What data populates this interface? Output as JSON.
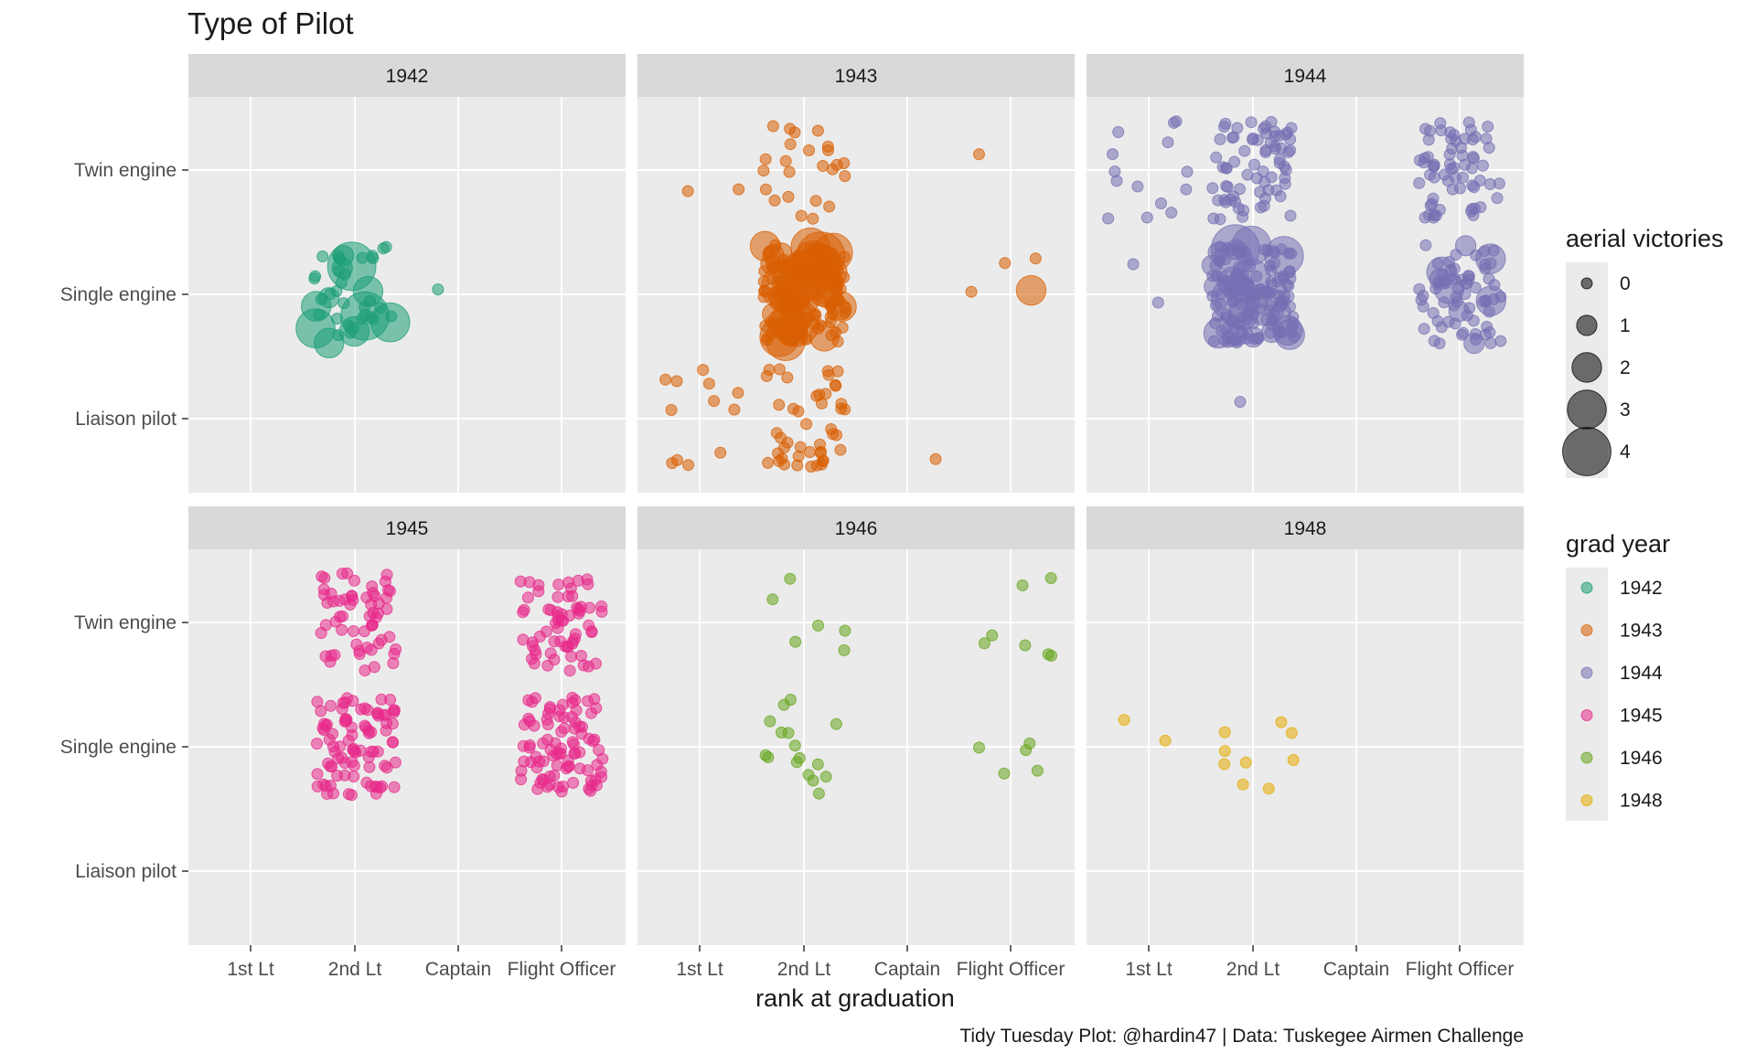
{
  "chart_data": {
    "type": "scatter",
    "title": "Type of Pilot",
    "xlabel": "rank at graduation",
    "ylabel": "",
    "caption": "Tidy Tuesday Plot: @hardin47 | Data: Tuskegee Airmen Challenge",
    "x_categories": [
      "1st Lt",
      "2nd Lt",
      "Captain",
      "Flight Officer"
    ],
    "y_categories": [
      "Liaison pilot",
      "Single engine",
      "Twin engine"
    ],
    "jitter": true,
    "grid": true,
    "legend_position": "right",
    "size_legend": {
      "title": "aerial victories",
      "values": [
        0,
        1,
        2,
        3,
        4
      ]
    },
    "color_legend": {
      "title": "grad year",
      "entries": [
        {
          "label": "1942",
          "color": "#1B9E77"
        },
        {
          "label": "1943",
          "color": "#D95F02"
        },
        {
          "label": "1944",
          "color": "#7570B3"
        },
        {
          "label": "1945",
          "color": "#E7298A"
        },
        {
          "label": "1946",
          "color": "#66A61E"
        },
        {
          "label": "1948",
          "color": "#E6AB02"
        }
      ]
    },
    "panels": [
      {
        "label": "1942",
        "color": "#1B9E77",
        "groups": [
          {
            "x": "2nd Lt",
            "y": "Single engine",
            "count": 42,
            "victories": [
              4,
              4,
              3,
              3,
              2,
              2,
              2,
              2,
              1,
              1,
              1
            ]
          },
          {
            "x": "Captain",
            "y": "Single engine",
            "count": 1,
            "victories": []
          }
        ]
      },
      {
        "label": "1943",
        "color": "#D95F02",
        "groups": [
          {
            "x": "2nd Lt",
            "y": "Twin engine",
            "count": 24,
            "victories": []
          },
          {
            "x": "1st Lt",
            "y": "Twin engine",
            "count": 2,
            "victories": []
          },
          {
            "x": "Flight Officer",
            "y": "Twin engine",
            "count": 1,
            "victories": []
          },
          {
            "x": "2nd Lt",
            "y": "Single engine",
            "count": 150,
            "victories": [
              4,
              4,
              4,
              3,
              3,
              3,
              3,
              3,
              3,
              3,
              3,
              2,
              2,
              2,
              2,
              2,
              2,
              2,
              2,
              2,
              2,
              2,
              2,
              2,
              1,
              1,
              1,
              1,
              1,
              1,
              1,
              1,
              1,
              1,
              1,
              1,
              1,
              1,
              1,
              1,
              1,
              1,
              1
            ]
          },
          {
            "x": "Flight Officer",
            "y": "Single engine",
            "count": 4,
            "victories": [
              2
            ]
          },
          {
            "x": "2nd Lt",
            "y": "Liaison pilot",
            "count": 45,
            "victories": []
          },
          {
            "x": "1st Lt",
            "y": "Liaison pilot",
            "count": 12,
            "victories": []
          },
          {
            "x": "Captain",
            "y": "Liaison pilot",
            "count": 1,
            "victories": []
          }
        ]
      },
      {
        "label": "1944",
        "color": "#7570B3",
        "groups": [
          {
            "x": "1st Lt",
            "y": "Twin engine",
            "count": 14,
            "victories": []
          },
          {
            "x": "2nd Lt",
            "y": "Twin engine",
            "count": 70,
            "victories": []
          },
          {
            "x": "Flight Officer",
            "y": "Twin engine",
            "count": 65,
            "victories": []
          },
          {
            "x": "2nd Lt",
            "y": "Single engine",
            "count": 150,
            "victories": [
              4,
              4,
              3,
              3,
              3,
              3,
              2,
              2,
              2,
              2,
              2,
              2,
              1,
              1,
              1,
              1,
              1,
              1,
              1,
              1
            ]
          },
          {
            "x": "1st Lt",
            "y": "Single engine",
            "count": 2,
            "victories": []
          },
          {
            "x": "Flight Officer",
            "y": "Single engine",
            "count": 70,
            "victories": [
              2,
              2,
              2,
              2,
              1,
              1,
              1,
              1
            ]
          },
          {
            "x": "2nd Lt",
            "y": "Liaison pilot",
            "count": 1,
            "victories": []
          }
        ]
      },
      {
        "label": "1945",
        "color": "#E7298A",
        "groups": [
          {
            "x": "2nd Lt",
            "y": "Twin engine",
            "count": 60,
            "victories": []
          },
          {
            "x": "Flight Officer",
            "y": "Twin engine",
            "count": 65,
            "victories": []
          },
          {
            "x": "2nd Lt",
            "y": "Single engine",
            "count": 90,
            "victories": []
          },
          {
            "x": "Flight Officer",
            "y": "Single engine",
            "count": 90,
            "victories": []
          }
        ]
      },
      {
        "label": "1946",
        "color": "#66A61E",
        "groups": [
          {
            "x": "2nd Lt",
            "y": "Twin engine",
            "count": 6,
            "victories": []
          },
          {
            "x": "Flight Officer",
            "y": "Twin engine",
            "count": 7,
            "victories": []
          },
          {
            "x": "2nd Lt",
            "y": "Single engine",
            "count": 16,
            "victories": []
          },
          {
            "x": "Flight Officer",
            "y": "Single engine",
            "count": 5,
            "victories": []
          }
        ]
      },
      {
        "label": "1948",
        "color": "#E6AB02",
        "groups": [
          {
            "x": "2nd Lt",
            "y": "Single engine",
            "count": 9,
            "victories": []
          },
          {
            "x": "1st Lt",
            "y": "Single engine",
            "count": 2,
            "victories": []
          }
        ]
      }
    ]
  }
}
